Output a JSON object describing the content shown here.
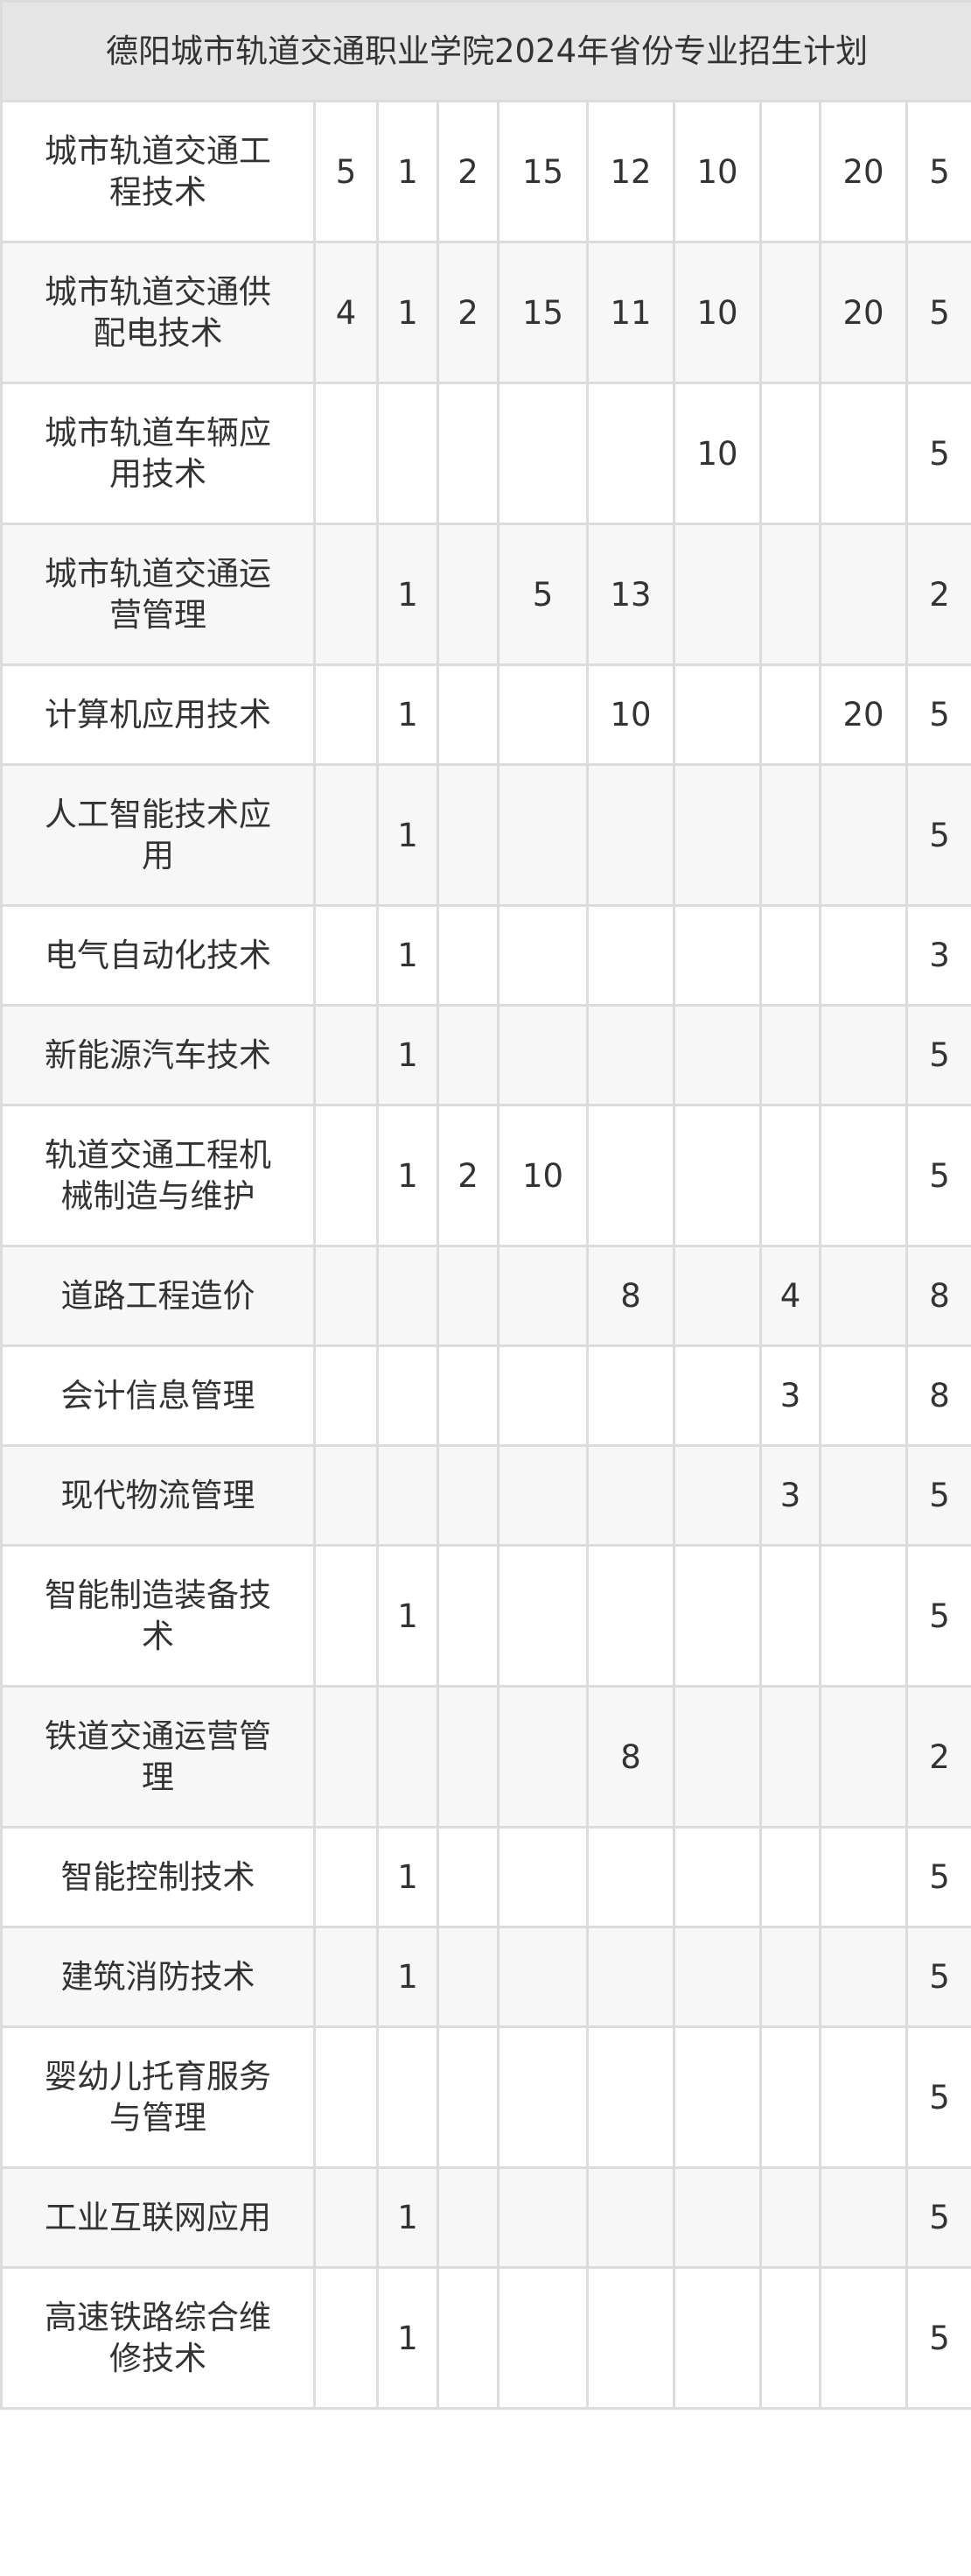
{
  "title": "德阳城市轨道交通职业学院2024年省份专业招生计划",
  "rows": [
    {
      "name": "城市轨道交通工程技术",
      "cells": [
        "5",
        "1",
        "2",
        "15",
        "12",
        "10",
        "",
        "20",
        "5"
      ]
    },
    {
      "name": "城市轨道交通供配电技术",
      "cells": [
        "4",
        "1",
        "2",
        "15",
        "11",
        "10",
        "",
        "20",
        "5"
      ]
    },
    {
      "name": "城市轨道车辆应用技术",
      "cells": [
        "",
        "",
        "",
        "",
        "",
        "10",
        "",
        "",
        "5"
      ]
    },
    {
      "name": "城市轨道交通运营管理",
      "cells": [
        "",
        "1",
        "",
        "5",
        "13",
        "",
        "",
        "",
        "2"
      ]
    },
    {
      "name": "计算机应用技术",
      "cells": [
        "",
        "1",
        "",
        "",
        "10",
        "",
        "",
        "20",
        "5"
      ]
    },
    {
      "name": "人工智能技术应用",
      "cells": [
        "",
        "1",
        "",
        "",
        "",
        "",
        "",
        "",
        "5"
      ]
    },
    {
      "name": "电气自动化技术",
      "cells": [
        "",
        "1",
        "",
        "",
        "",
        "",
        "",
        "",
        "3"
      ]
    },
    {
      "name": "新能源汽车技术",
      "cells": [
        "",
        "1",
        "",
        "",
        "",
        "",
        "",
        "",
        "5"
      ]
    },
    {
      "name": "轨道交通工程机械制造与维护",
      "cells": [
        "",
        "1",
        "2",
        "10",
        "",
        "",
        "",
        "",
        "5"
      ]
    },
    {
      "name": "道路工程造价",
      "cells": [
        "",
        "",
        "",
        "",
        "8",
        "",
        "4",
        "",
        "8"
      ]
    },
    {
      "name": "会计信息管理",
      "cells": [
        "",
        "",
        "",
        "",
        "",
        "",
        "3",
        "",
        "8"
      ]
    },
    {
      "name": "现代物流管理",
      "cells": [
        "",
        "",
        "",
        "",
        "",
        "",
        "3",
        "",
        "5"
      ]
    },
    {
      "name": "智能制造装备技术",
      "cells": [
        "",
        "1",
        "",
        "",
        "",
        "",
        "",
        "",
        "5"
      ]
    },
    {
      "name": "铁道交通运营管理",
      "cells": [
        "",
        "",
        "",
        "",
        "8",
        "",
        "",
        "",
        "2"
      ]
    },
    {
      "name": "智能控制技术",
      "cells": [
        "",
        "1",
        "",
        "",
        "",
        "",
        "",
        "",
        "5"
      ]
    },
    {
      "name": "建筑消防技术",
      "cells": [
        "",
        "1",
        "",
        "",
        "",
        "",
        "",
        "",
        "5"
      ]
    },
    {
      "name": "婴幼儿托育服务与管理",
      "cells": [
        "",
        "",
        "",
        "",
        "",
        "",
        "",
        "",
        "5"
      ]
    },
    {
      "name": "工业互联网应用",
      "cells": [
        "",
        "1",
        "",
        "",
        "",
        "",
        "",
        "",
        "5"
      ]
    },
    {
      "name": "高速铁路综合维修技术",
      "cells": [
        "",
        "1",
        "",
        "",
        "",
        "",
        "",
        "",
        "5"
      ]
    }
  ]
}
